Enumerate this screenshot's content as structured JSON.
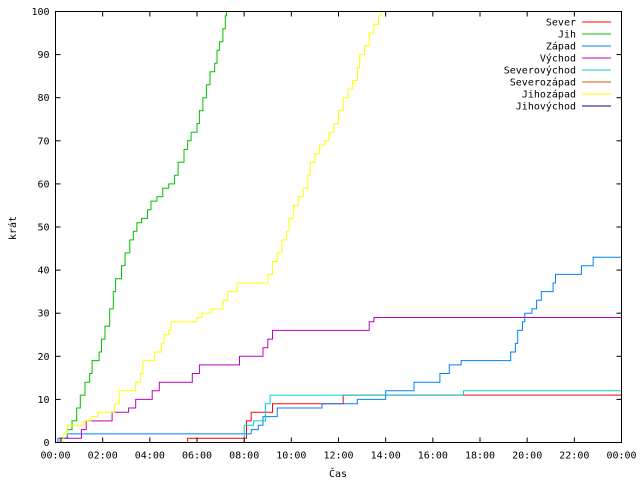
{
  "chart_data": {
    "type": "line",
    "title": "",
    "xlabel": "Čas",
    "ylabel": "krát",
    "xlim": [
      0,
      24
    ],
    "ylim": [
      0,
      100
    ],
    "x_ticks": [
      {
        "value": 0,
        "label": "00:00"
      },
      {
        "value": 2,
        "label": "02:00"
      },
      {
        "value": 4,
        "label": "04:00"
      },
      {
        "value": 6,
        "label": "06:00"
      },
      {
        "value": 8,
        "label": "08:00"
      },
      {
        "value": 10,
        "label": "10:00"
      },
      {
        "value": 12,
        "label": "12:00"
      },
      {
        "value": 14,
        "label": "14:00"
      },
      {
        "value": 16,
        "label": "16:00"
      },
      {
        "value": 18,
        "label": "18:00"
      },
      {
        "value": 20,
        "label": "20:00"
      },
      {
        "value": 22,
        "label": "22:00"
      },
      {
        "value": 24,
        "label": "00:00"
      }
    ],
    "y_ticks": [
      0,
      10,
      20,
      30,
      40,
      50,
      60,
      70,
      80,
      90,
      100
    ],
    "grid": false,
    "legend_position": "top-right",
    "step": true,
    "series": [
      {
        "name": "Sever",
        "color": "#ff0000",
        "points": [
          [
            5.6,
            0
          ],
          [
            5.6,
            1
          ],
          [
            8.1,
            1
          ],
          [
            8.1,
            5
          ],
          [
            8.3,
            7
          ],
          [
            9.1,
            7
          ],
          [
            9.2,
            9
          ],
          [
            12.1,
            9
          ],
          [
            12.2,
            11
          ],
          [
            24,
            11
          ]
        ]
      },
      {
        "name": "Jih",
        "color": "#00c000",
        "points": [
          [
            0.2,
            0
          ],
          [
            0.25,
            1
          ],
          [
            0.5,
            3
          ],
          [
            0.7,
            5
          ],
          [
            0.9,
            8
          ],
          [
            1.05,
            11
          ],
          [
            1.25,
            14
          ],
          [
            1.45,
            16
          ],
          [
            1.55,
            19
          ],
          [
            1.85,
            21
          ],
          [
            1.95,
            24
          ],
          [
            2.1,
            27
          ],
          [
            2.3,
            31
          ],
          [
            2.45,
            35
          ],
          [
            2.55,
            38
          ],
          [
            2.8,
            41
          ],
          [
            2.95,
            44
          ],
          [
            3.15,
            47
          ],
          [
            3.3,
            49
          ],
          [
            3.45,
            51
          ],
          [
            3.65,
            52
          ],
          [
            3.9,
            54
          ],
          [
            4.05,
            56
          ],
          [
            4.3,
            57
          ],
          [
            4.55,
            59
          ],
          [
            4.8,
            60
          ],
          [
            5.05,
            62
          ],
          [
            5.2,
            65
          ],
          [
            5.45,
            68
          ],
          [
            5.6,
            70
          ],
          [
            5.75,
            72
          ],
          [
            6.0,
            74
          ],
          [
            6.1,
            77
          ],
          [
            6.25,
            80
          ],
          [
            6.4,
            83
          ],
          [
            6.55,
            86
          ],
          [
            6.75,
            88
          ],
          [
            6.85,
            91
          ],
          [
            6.95,
            93
          ],
          [
            7.1,
            96
          ],
          [
            7.2,
            99
          ],
          [
            7.25,
            100
          ]
        ]
      },
      {
        "name": "Západ",
        "color": "#0080ff",
        "points": [
          [
            0.1,
            0
          ],
          [
            0.1,
            1
          ],
          [
            0.5,
            2
          ],
          [
            8.1,
            2
          ],
          [
            8.3,
            3
          ],
          [
            8.6,
            4
          ],
          [
            8.8,
            6
          ],
          [
            9.3,
            6
          ],
          [
            9.4,
            8
          ],
          [
            11.2,
            8
          ],
          [
            11.3,
            9
          ],
          [
            12.2,
            9
          ],
          [
            12.8,
            10
          ],
          [
            13.9,
            10
          ],
          [
            14.0,
            12
          ],
          [
            15.1,
            12
          ],
          [
            15.2,
            14
          ],
          [
            16.1,
            14
          ],
          [
            16.3,
            16
          ],
          [
            16.7,
            18
          ],
          [
            17.2,
            19
          ],
          [
            19.2,
            19
          ],
          [
            19.3,
            21
          ],
          [
            19.5,
            23
          ],
          [
            19.6,
            26
          ],
          [
            19.8,
            28
          ],
          [
            19.9,
            30
          ],
          [
            20.2,
            31
          ],
          [
            20.4,
            33
          ],
          [
            20.6,
            35
          ],
          [
            21.1,
            37
          ],
          [
            21.2,
            39
          ],
          [
            22.2,
            39
          ],
          [
            22.3,
            41
          ],
          [
            22.8,
            43
          ],
          [
            24,
            43
          ]
        ]
      },
      {
        "name": "Východ",
        "color": "#c000c0",
        "points": [
          [
            0.2,
            0
          ],
          [
            0.2,
            1
          ],
          [
            1.1,
            1
          ],
          [
            1.1,
            3
          ],
          [
            1.3,
            5
          ],
          [
            2.3,
            5
          ],
          [
            2.4,
            7
          ],
          [
            3.1,
            8
          ],
          [
            3.4,
            10
          ],
          [
            4.0,
            10
          ],
          [
            4.1,
            12
          ],
          [
            4.4,
            14
          ],
          [
            5.8,
            14
          ],
          [
            5.8,
            16
          ],
          [
            6.1,
            18
          ],
          [
            7.8,
            18
          ],
          [
            7.8,
            20
          ],
          [
            8.8,
            20
          ],
          [
            8.8,
            22
          ],
          [
            9.0,
            24
          ],
          [
            9.2,
            26
          ],
          [
            13.3,
            26
          ],
          [
            13.3,
            28
          ],
          [
            13.5,
            29
          ],
          [
            24,
            29
          ]
        ]
      },
      {
        "name": "Severovýchod",
        "color": "#00d0d0",
        "points": [
          [
            8.0,
            0
          ],
          [
            8.0,
            4
          ],
          [
            8.4,
            5
          ],
          [
            8.8,
            5
          ],
          [
            8.9,
            9
          ],
          [
            9.1,
            11
          ],
          [
            17.2,
            11
          ],
          [
            17.3,
            12
          ],
          [
            24,
            12
          ]
        ]
      },
      {
        "name": "Severozápad",
        "color": "#c06000",
        "points": []
      },
      {
        "name": "Jihozápad",
        "color": "#ffff00",
        "points": [
          [
            0.3,
            0
          ],
          [
            0.35,
            2
          ],
          [
            0.5,
            4
          ],
          [
            1.1,
            4
          ],
          [
            1.2,
            5
          ],
          [
            1.5,
            6
          ],
          [
            1.8,
            7
          ],
          [
            2.4,
            7
          ],
          [
            2.5,
            9
          ],
          [
            2.7,
            12
          ],
          [
            3.3,
            12
          ],
          [
            3.4,
            14
          ],
          [
            3.6,
            16
          ],
          [
            3.7,
            19
          ],
          [
            4.1,
            19
          ],
          [
            4.2,
            21
          ],
          [
            4.5,
            23
          ],
          [
            4.6,
            25
          ],
          [
            4.8,
            26
          ],
          [
            4.9,
            28
          ],
          [
            5.9,
            28
          ],
          [
            6.0,
            29
          ],
          [
            6.2,
            30
          ],
          [
            6.4,
            30
          ],
          [
            6.6,
            31
          ],
          [
            7.0,
            31
          ],
          [
            7.1,
            33
          ],
          [
            7.3,
            35
          ],
          [
            7.6,
            35
          ],
          [
            7.7,
            37
          ],
          [
            8.9,
            37
          ],
          [
            9.0,
            39
          ],
          [
            9.2,
            42
          ],
          [
            9.4,
            44
          ],
          [
            9.6,
            47
          ],
          [
            9.8,
            49
          ],
          [
            9.9,
            52
          ],
          [
            10.1,
            55
          ],
          [
            10.3,
            57
          ],
          [
            10.5,
            59
          ],
          [
            10.7,
            62
          ],
          [
            10.8,
            65
          ],
          [
            11.0,
            67
          ],
          [
            11.2,
            69
          ],
          [
            11.4,
            70
          ],
          [
            11.6,
            72
          ],
          [
            11.8,
            74
          ],
          [
            12.0,
            77
          ],
          [
            12.2,
            80
          ],
          [
            12.4,
            82
          ],
          [
            12.6,
            84
          ],
          [
            12.8,
            87
          ],
          [
            12.9,
            90
          ],
          [
            13.1,
            92
          ],
          [
            13.3,
            95
          ],
          [
            13.5,
            97
          ],
          [
            13.7,
            99
          ],
          [
            13.8,
            100
          ]
        ]
      },
      {
        "name": "Jihovýchod",
        "color": "#000090",
        "points": []
      }
    ]
  }
}
